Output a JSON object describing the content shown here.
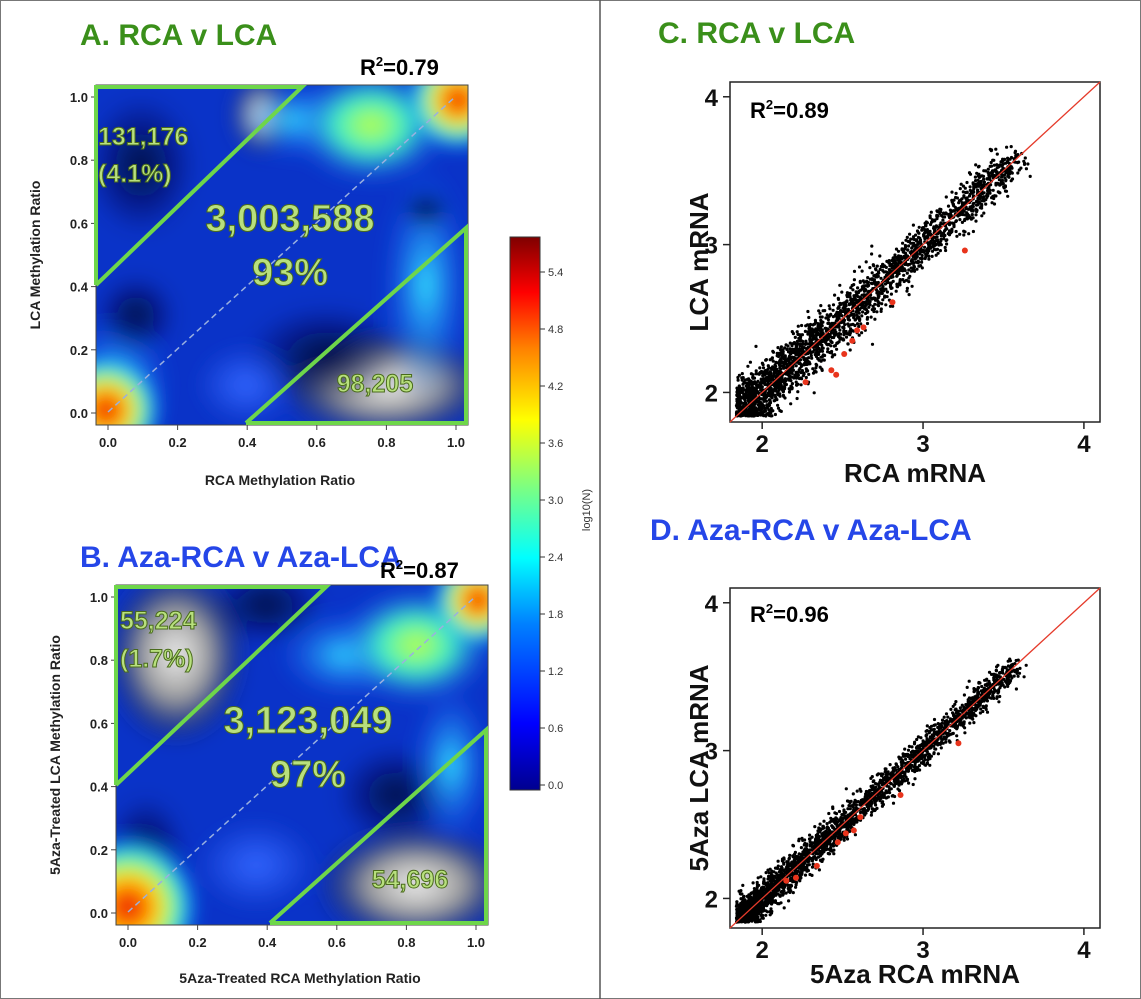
{
  "colors": {
    "green_title": "#3a8f1a",
    "blue_title": "#2546e8",
    "region_line": "#6ed64a",
    "count_fill": "#b8e07e",
    "fit_line": "#e53a2a",
    "highlight_points": "#e8341c"
  },
  "colorbar": {
    "label": "log10(N)",
    "ticks": [
      "5.4",
      "4.8",
      "4.2",
      "3.6",
      "3.0",
      "2.4",
      "1.8",
      "1.2",
      "0.6",
      "0.0"
    ]
  },
  "chart_data": [
    {
      "panel": "A",
      "type": "heatmap",
      "title": "A. RCA v LCA",
      "xlabel": "RCA Methylation Ratio",
      "ylabel": "LCA Methylation Ratio",
      "r2": "0.79",
      "xlim": [
        0,
        1
      ],
      "ylim": [
        0,
        1
      ],
      "xticks": [
        "0.0",
        "0.2",
        "0.4",
        "0.6",
        "0.8",
        "1.0"
      ],
      "yticks": [
        "0.0",
        "0.2",
        "0.4",
        "0.6",
        "0.8",
        "1.0"
      ],
      "regions": [
        {
          "label": "131,176",
          "sub": "(4.1%)"
        },
        {
          "label": "3,003,588",
          "sub": "93%"
        },
        {
          "label": "98,205",
          "sub": ""
        }
      ]
    },
    {
      "panel": "B",
      "type": "heatmap",
      "title": "B. Aza-RCA v Aza-LCA",
      "xlabel": "5Aza-Treated RCA Methylation Ratio",
      "ylabel": "5Aza-Treated LCA Methylation Ratio",
      "r2": "0.87",
      "xlim": [
        0,
        1
      ],
      "ylim": [
        0,
        1
      ],
      "xticks": [
        "0.0",
        "0.2",
        "0.4",
        "0.6",
        "0.8",
        "1.0"
      ],
      "yticks": [
        "0.0",
        "0.2",
        "0.4",
        "0.6",
        "0.8",
        "1.0"
      ],
      "regions": [
        {
          "label": "55,224",
          "sub": "(1.7%)"
        },
        {
          "label": "3,123,049",
          "sub": "97%"
        },
        {
          "label": "54,696",
          "sub": ""
        }
      ]
    },
    {
      "panel": "C",
      "type": "scatter",
      "title": "C. RCA v LCA",
      "xlabel": "RCA mRNA",
      "ylabel": "LCA mRNA",
      "r2": "0.89",
      "xlim": [
        1.8,
        4.1
      ],
      "ylim": [
        1.8,
        4.1
      ],
      "xticks": [
        "2",
        "3",
        "4"
      ],
      "yticks": [
        "2",
        "3",
        "4"
      ],
      "highlight": [
        [
          2.27,
          2.07
        ],
        [
          2.43,
          2.15
        ],
        [
          2.46,
          2.12
        ],
        [
          2.51,
          2.26
        ],
        [
          2.56,
          2.35
        ],
        [
          2.59,
          2.42
        ],
        [
          2.63,
          2.44
        ],
        [
          2.81,
          2.61
        ],
        [
          3.26,
          2.96
        ]
      ]
    },
    {
      "panel": "D",
      "type": "scatter",
      "title": "D. Aza-RCA v Aza-LCA",
      "xlabel": "5Aza RCA mRNA",
      "ylabel": "5Aza LCA mRNA",
      "r2": "0.96",
      "xlim": [
        1.8,
        4.1
      ],
      "ylim": [
        1.8,
        4.1
      ],
      "xticks": [
        "2",
        "3",
        "4"
      ],
      "yticks": [
        "2",
        "3",
        "4"
      ],
      "highlight": [
        [
          2.15,
          2.12
        ],
        [
          2.21,
          2.14
        ],
        [
          2.34,
          2.22
        ],
        [
          2.47,
          2.38
        ],
        [
          2.52,
          2.44
        ],
        [
          2.57,
          2.46
        ],
        [
          2.61,
          2.55
        ],
        [
          2.86,
          2.7
        ],
        [
          3.22,
          3.05
        ]
      ]
    }
  ]
}
